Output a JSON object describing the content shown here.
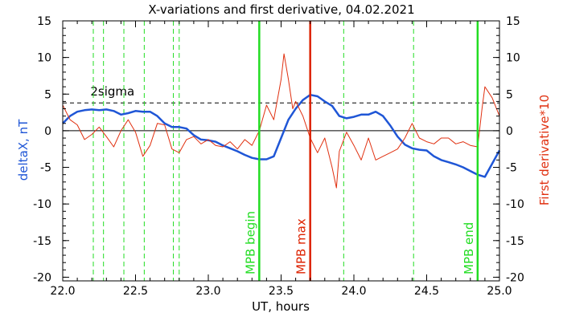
{
  "chart_data": {
    "type": "line",
    "title": "X-variations and first derivative, 04.02.2021",
    "xlabel": "UT, hours",
    "ylabel_left": "deltaX, nT",
    "ylabel_right": "First derivative*10",
    "xlim": [
      22.0,
      25.0
    ],
    "ylim": [
      -20.5,
      15
    ],
    "x_ticks": [
      22.0,
      22.5,
      23.0,
      23.5,
      24.0,
      24.5,
      25.0
    ],
    "x_tick_labels": [
      "22.0",
      "22.5",
      "23.0",
      "23.5",
      "24.0",
      "24.5",
      "25.0"
    ],
    "y_ticks": [
      -20,
      -15,
      -10,
      -5,
      0,
      5,
      10,
      15
    ],
    "y_tick_labels": [
      "-20",
      "-15",
      "-10",
      "-5",
      "0",
      "5",
      "10",
      "15"
    ],
    "grid": false,
    "series": [
      {
        "name": "deltaX, nT",
        "color": "#1f56d6",
        "x": [
          22.0,
          22.05,
          22.1,
          22.15,
          22.2,
          22.25,
          22.3,
          22.35,
          22.4,
          22.45,
          22.5,
          22.55,
          22.6,
          22.65,
          22.7,
          22.75,
          22.8,
          22.85,
          22.9,
          22.95,
          23.0,
          23.05,
          23.1,
          23.15,
          23.2,
          23.25,
          23.3,
          23.35,
          23.4,
          23.45,
          23.5,
          23.55,
          23.6,
          23.65,
          23.7,
          23.75,
          23.8,
          23.85,
          23.9,
          23.95,
          24.0,
          24.05,
          24.1,
          24.15,
          24.2,
          24.25,
          24.3,
          24.35,
          24.4,
          24.45,
          24.5,
          24.55,
          24.6,
          24.65,
          24.7,
          24.75,
          24.8,
          24.85,
          24.9,
          24.95,
          25.0
        ],
        "values": [
          1.0,
          2.0,
          2.6,
          2.8,
          2.9,
          2.8,
          2.9,
          2.7,
          2.2,
          2.4,
          2.7,
          2.6,
          2.6,
          2.0,
          1.0,
          0.5,
          0.5,
          0.3,
          -0.6,
          -1.2,
          -1.3,
          -1.5,
          -2.0,
          -2.4,
          -2.8,
          -3.3,
          -3.7,
          -3.9,
          -3.9,
          -3.5,
          -1.0,
          1.5,
          3.0,
          4.2,
          4.9,
          4.7,
          4.0,
          3.4,
          2.0,
          1.7,
          1.9,
          2.2,
          2.2,
          2.6,
          2.0,
          0.7,
          -0.8,
          -1.9,
          -2.4,
          -2.6,
          -2.7,
          -3.5,
          -4.0,
          -4.3,
          -4.6,
          -5.0,
          -5.5,
          -6.0,
          -6.3,
          -4.5,
          -2.7
        ]
      },
      {
        "name": "First derivative*10",
        "color": "#e03010",
        "x": [
          22.0,
          22.05,
          22.1,
          22.15,
          22.2,
          22.25,
          22.3,
          22.35,
          22.4,
          22.45,
          22.5,
          22.55,
          22.6,
          22.65,
          22.7,
          22.75,
          22.8,
          22.85,
          22.9,
          22.95,
          23.0,
          23.05,
          23.1,
          23.15,
          23.2,
          23.25,
          23.3,
          23.35,
          23.4,
          23.45,
          23.5,
          23.52,
          23.55,
          23.58,
          23.6,
          23.65,
          23.7,
          23.75,
          23.8,
          23.85,
          23.88,
          23.9,
          23.95,
          24.0,
          24.05,
          24.1,
          24.15,
          24.2,
          24.25,
          24.3,
          24.35,
          24.4,
          24.45,
          24.5,
          24.55,
          24.6,
          24.65,
          24.7,
          24.75,
          24.8,
          24.85,
          24.88,
          24.9,
          24.95,
          25.0
        ],
        "values": [
          3.5,
          1.5,
          0.8,
          -1.2,
          -0.5,
          0.5,
          -0.8,
          -2.2,
          0.0,
          1.5,
          -0.2,
          -3.5,
          -2.0,
          1.0,
          0.8,
          -2.5,
          -3.0,
          -1.2,
          -0.8,
          -1.8,
          -1.2,
          -2.0,
          -2.2,
          -1.5,
          -2.5,
          -1.2,
          -2.0,
          0.0,
          3.5,
          1.5,
          7.0,
          10.5,
          7.0,
          3.0,
          4.0,
          2.0,
          -1.0,
          -3.0,
          -1.0,
          -5.0,
          -7.8,
          -2.8,
          -0.2,
          -2.0,
          -4.0,
          -1.0,
          -4.0,
          -3.5,
          -3.0,
          -2.5,
          -1.0,
          1.0,
          -1.0,
          -1.5,
          -1.8,
          -1.0,
          -1.0,
          -1.8,
          -1.5,
          -2.0,
          -2.2,
          3.0,
          6.0,
          4.5,
          2.0
        ]
      }
    ],
    "threshold": {
      "label": "2sigma",
      "value": 3.8
    },
    "zero_line": 0,
    "dashed_markers": [
      22.21,
      22.28,
      22.42,
      22.56,
      22.76,
      22.8,
      23.93,
      24.41
    ],
    "events": [
      {
        "label": "MPB begin",
        "x": 23.35,
        "color": "#22dd22"
      },
      {
        "label": "MPB max",
        "x": 23.7,
        "color": "#dd2200"
      },
      {
        "label": "MPB end",
        "x": 24.85,
        "color": "#22dd22"
      }
    ]
  }
}
